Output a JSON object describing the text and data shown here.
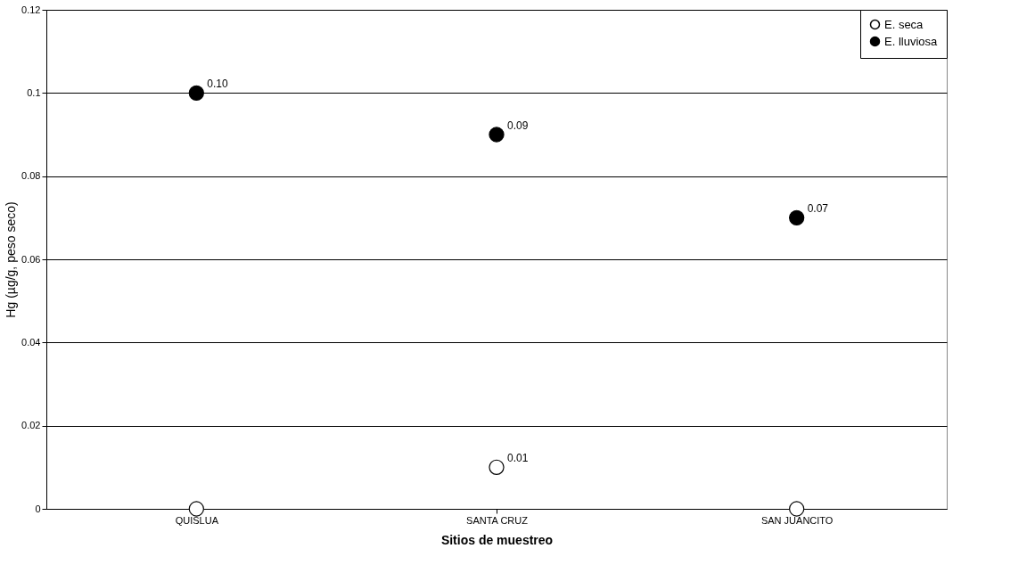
{
  "chart_data": {
    "type": "scatter",
    "xlabel": "Sitios de muestreo",
    "ylabel": "Hg (µg/g, peso seco)",
    "categories": [
      "QUISLUA",
      "SANTA CRUZ",
      "SAN JUANCITO"
    ],
    "series": [
      {
        "name": "E. seca",
        "color": "#ffffff",
        "values": [
          0,
          0.01,
          0
        ],
        "value_labels": [
          null,
          "0.01",
          null
        ]
      },
      {
        "name": "E. lluviosa",
        "color": "#000000",
        "values": [
          0.1,
          0.09,
          0.07
        ],
        "value_labels": [
          "0.10",
          "0.09",
          "0.07"
        ]
      }
    ],
    "ylim": [
      0,
      0.12
    ],
    "yticks": [
      0,
      0.02,
      0.04,
      0.06,
      0.08,
      0.1,
      0.12
    ],
    "grid": "y",
    "legend": "top right",
    "marker": "circle"
  }
}
